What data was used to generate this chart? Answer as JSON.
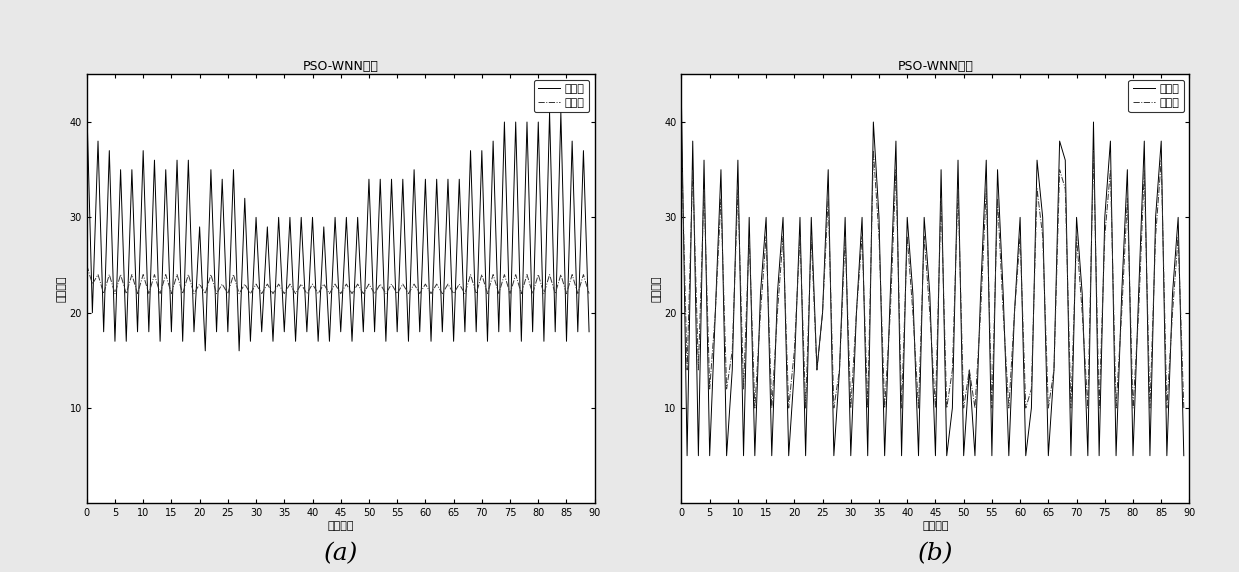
{
  "title_a": "PSO-WNN预测",
  "title_b": "PSO-WNN预测",
  "xlabel": "时间间隔",
  "ylabel_a": "停车位数",
  "ylabel_b": "停车位数",
  "legend_actual": "实测值",
  "legend_predicted": "预测值",
  "xlim": [
    0,
    90
  ],
  "ylim_a": [
    0,
    45
  ],
  "ylim_b": [
    0,
    45
  ],
  "xticks": [
    0,
    5,
    10,
    15,
    20,
    25,
    30,
    35,
    40,
    45,
    50,
    55,
    60,
    65,
    70,
    75,
    80,
    85,
    90
  ],
  "yticks_a": [
    10,
    20,
    30,
    40
  ],
  "yticks_b": [
    10,
    20,
    30,
    40
  ],
  "label_a": "(a)",
  "label_b": "(b)",
  "actual_a": [
    42,
    20,
    38,
    18,
    37,
    17,
    35,
    17,
    35,
    18,
    37,
    18,
    36,
    17,
    35,
    18,
    36,
    17,
    36,
    18,
    29,
    16,
    35,
    18,
    34,
    18,
    35,
    16,
    32,
    17,
    30,
    18,
    29,
    17,
    30,
    18,
    30,
    17,
    30,
    18,
    30,
    17,
    29,
    17,
    30,
    18,
    30,
    17,
    30,
    18,
    34,
    18,
    34,
    17,
    34,
    18,
    34,
    17,
    35,
    18,
    34,
    17,
    34,
    18,
    34,
    17,
    34,
    18,
    37,
    18,
    37,
    17,
    38,
    18,
    40,
    18,
    40,
    17,
    40,
    18,
    40,
    17,
    41,
    18,
    41,
    17,
    38,
    18,
    37,
    18
  ],
  "predicted_a": [
    25,
    23,
    24,
    22,
    24,
    22,
    24,
    22,
    24,
    22,
    24,
    22,
    24,
    22,
    24,
    22,
    24,
    22,
    24,
    22,
    23,
    22,
    24,
    22,
    23,
    22,
    24,
    22,
    23,
    22,
    23,
    22,
    23,
    22,
    23,
    22,
    23,
    22,
    23,
    22,
    23,
    22,
    23,
    22,
    23,
    22,
    23,
    22,
    23,
    22,
    23,
    22,
    23,
    22,
    23,
    22,
    23,
    22,
    23,
    22,
    23,
    22,
    23,
    22,
    23,
    22,
    23,
    22,
    24,
    22,
    24,
    22,
    24,
    22,
    24,
    22,
    24,
    22,
    24,
    22,
    24,
    22,
    24,
    22,
    24,
    22,
    24,
    22,
    24,
    22
  ],
  "actual_b": [
    42,
    5,
    38,
    5,
    36,
    5,
    20,
    35,
    5,
    14,
    36,
    5,
    30,
    5,
    22,
    30,
    5,
    22,
    30,
    5,
    14,
    30,
    5,
    30,
    14,
    20,
    35,
    5,
    14,
    30,
    5,
    20,
    30,
    5,
    40,
    30,
    5,
    22,
    38,
    5,
    30,
    22,
    5,
    30,
    22,
    5,
    35,
    5,
    10,
    36,
    5,
    14,
    5,
    22,
    36,
    5,
    35,
    22,
    5,
    20,
    30,
    5,
    10,
    36,
    30,
    5,
    14,
    38,
    36,
    5,
    30,
    22,
    5,
    40,
    5,
    30,
    38,
    5,
    22,
    35,
    5,
    22,
    38,
    5,
    30,
    38,
    5,
    22,
    30,
    5
  ],
  "predicted_b": [
    38,
    14,
    35,
    14,
    33,
    12,
    20,
    32,
    12,
    16,
    33,
    12,
    28,
    10,
    20,
    28,
    10,
    20,
    28,
    10,
    16,
    28,
    10,
    28,
    14,
    20,
    32,
    10,
    14,
    28,
    10,
    20,
    28,
    10,
    37,
    28,
    10,
    20,
    35,
    10,
    28,
    20,
    10,
    28,
    20,
    10,
    32,
    10,
    14,
    33,
    10,
    14,
    10,
    20,
    33,
    10,
    32,
    20,
    10,
    20,
    28,
    10,
    12,
    33,
    28,
    10,
    14,
    35,
    33,
    10,
    28,
    20,
    10,
    37,
    10,
    28,
    35,
    10,
    20,
    32,
    10,
    20,
    35,
    10,
    28,
    36,
    10,
    20,
    28,
    10
  ],
  "fig_bg": "#e8e8e8",
  "ax_bg": "#ffffff",
  "line_color": "#000000",
  "pred_color": "#333333",
  "line_width": 0.7,
  "title_fontsize": 9,
  "label_fontsize": 8,
  "tick_fontsize": 7,
  "legend_fontsize": 8,
  "caption_fontsize": 18
}
